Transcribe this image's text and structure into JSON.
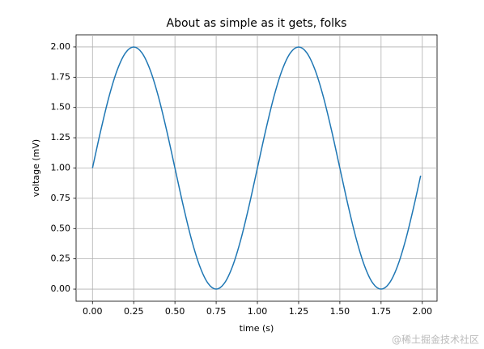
{
  "chart_data": {
    "type": "line",
    "title": "About as simple as it gets, folks",
    "x_label": "time (s)",
    "y_label": "voltage (mV)",
    "x": [
      0,
      0.05,
      0.1,
      0.15,
      0.2,
      0.25,
      0.3,
      0.35,
      0.4,
      0.45,
      0.5,
      0.55,
      0.6,
      0.65,
      0.7,
      0.75,
      0.8,
      0.85,
      0.9,
      0.95,
      1.0,
      1.05,
      1.1,
      1.15,
      1.2,
      1.25,
      1.3,
      1.35,
      1.4,
      1.45,
      1.5,
      1.55,
      1.6,
      1.65,
      1.7,
      1.75,
      1.8,
      1.85,
      1.9,
      1.95,
      1.99
    ],
    "series": [
      {
        "color": "#1f77b4",
        "values": [
          1,
          1.309,
          1.588,
          1.809,
          1.951,
          2,
          1.951,
          1.809,
          1.588,
          1.309,
          1,
          0.691,
          0.412,
          0.191,
          0.049,
          0,
          0.049,
          0.191,
          0.412,
          0.691,
          1,
          1.309,
          1.588,
          1.809,
          1.951,
          2,
          1.951,
          1.809,
          1.588,
          1.309,
          1,
          0.691,
          0.412,
          0.191,
          0.049,
          0,
          0.049,
          0.191,
          0.412,
          0.691,
          0.937
        ]
      }
    ],
    "xlim": [
      -0.0995,
      2.0895
    ],
    "ylim": [
      -0.1,
      2.1
    ],
    "xticks": [
      {
        "value": 0,
        "label": "0.00"
      },
      {
        "value": 0.25,
        "label": "0.25"
      },
      {
        "value": 0.5,
        "label": "0.50"
      },
      {
        "value": 0.75,
        "label": "0.75"
      },
      {
        "value": 1,
        "label": "1.00"
      },
      {
        "value": 1.25,
        "label": "1.25"
      },
      {
        "value": 1.5,
        "label": "1.50"
      },
      {
        "value": 1.75,
        "label": "1.75"
      },
      {
        "value": 2,
        "label": "2.00"
      }
    ],
    "yticks": [
      {
        "value": 0,
        "label": "0.00"
      },
      {
        "value": 0.25,
        "label": "0.25"
      },
      {
        "value": 0.5,
        "label": "0.50"
      },
      {
        "value": 0.75,
        "label": "0.75"
      },
      {
        "value": 1,
        "label": "1.00"
      },
      {
        "value": 1.25,
        "label": "1.25"
      },
      {
        "value": 1.5,
        "label": "1.50"
      },
      {
        "value": 1.75,
        "label": "1.75"
      },
      {
        "value": 2,
        "label": "2.00"
      }
    ],
    "grid": true,
    "watermark": "@稀土掘金技术社区"
  }
}
